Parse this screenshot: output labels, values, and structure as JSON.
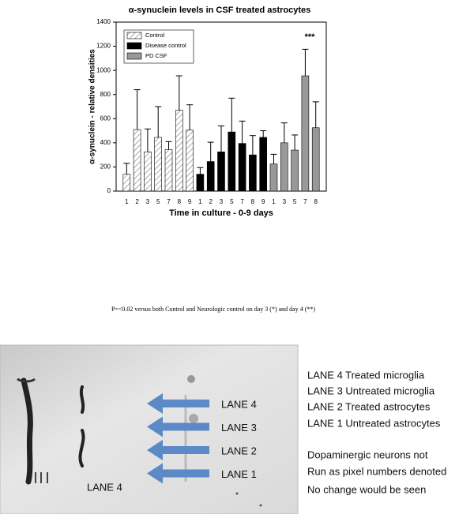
{
  "chart_data": {
    "type": "bar",
    "title": "α-synuclein levels in CSF treated astrocytes",
    "y_label": "α-synuclein - relative densities",
    "x_label": "Time in culture - 0-9 days",
    "annotation": "***",
    "categories": [
      "1",
      "2",
      "3",
      "5",
      "7",
      "8",
      "9",
      "1",
      "2",
      "3",
      "5",
      "7",
      "8",
      "9",
      "1",
      "3",
      "5",
      "7",
      "8"
    ],
    "series": [
      {
        "name": "Control",
        "color": "#ffffff",
        "hatch": true,
        "values": [
          140,
          510,
          325,
          445,
          345,
          670,
          505,
          null,
          null,
          null,
          null,
          null,
          null,
          null,
          null,
          null,
          null,
          null,
          null
        ],
        "errors": [
          90,
          330,
          190,
          255,
          65,
          285,
          210,
          null,
          null,
          null,
          null,
          null,
          null,
          null,
          null,
          null,
          null,
          null,
          null
        ]
      },
      {
        "name": "Disease control",
        "color": "#000000",
        "values": [
          null,
          null,
          null,
          null,
          null,
          null,
          null,
          140,
          245,
          325,
          490,
          395,
          300,
          445,
          null,
          null,
          null,
          null,
          null
        ],
        "errors": [
          null,
          null,
          null,
          null,
          null,
          null,
          null,
          55,
          160,
          215,
          280,
          185,
          160,
          55,
          null,
          null,
          null,
          null,
          null
        ]
      },
      {
        "name": "PD CSF",
        "color": "#999999",
        "values": [
          null,
          null,
          null,
          null,
          null,
          null,
          null,
          null,
          null,
          null,
          null,
          null,
          null,
          null,
          225,
          400,
          340,
          955,
          525
        ],
        "errors": [
          null,
          null,
          null,
          null,
          null,
          null,
          null,
          null,
          null,
          null,
          null,
          null,
          null,
          null,
          80,
          165,
          125,
          220,
          215
        ]
      }
    ],
    "ylim": [
      0,
      1400
    ],
    "yticks": [
      0,
      200,
      400,
      600,
      800,
      1000,
      1200,
      1400
    ],
    "grid": false,
    "legend": "upper left"
  },
  "caption": "P=<0.02 versus both Control and Neurologic control on day 3 (*) and day 4 (**)",
  "gel": {
    "arrow_labels": [
      "LANE 4",
      "LANE 3",
      "LANE 2",
      "LANE 1"
    ],
    "lane_label": "LANE 4",
    "legend_lines": [
      "LANE 4 Treated microglia",
      "LANE 3 Untreated microglia",
      "LANE 2 Treated astrocytes",
      "LANE 1 Untreated astrocytes",
      "Dopaminergic neurons not",
      "Run as pixel numbers denoted",
      "No change would be seen"
    ]
  }
}
